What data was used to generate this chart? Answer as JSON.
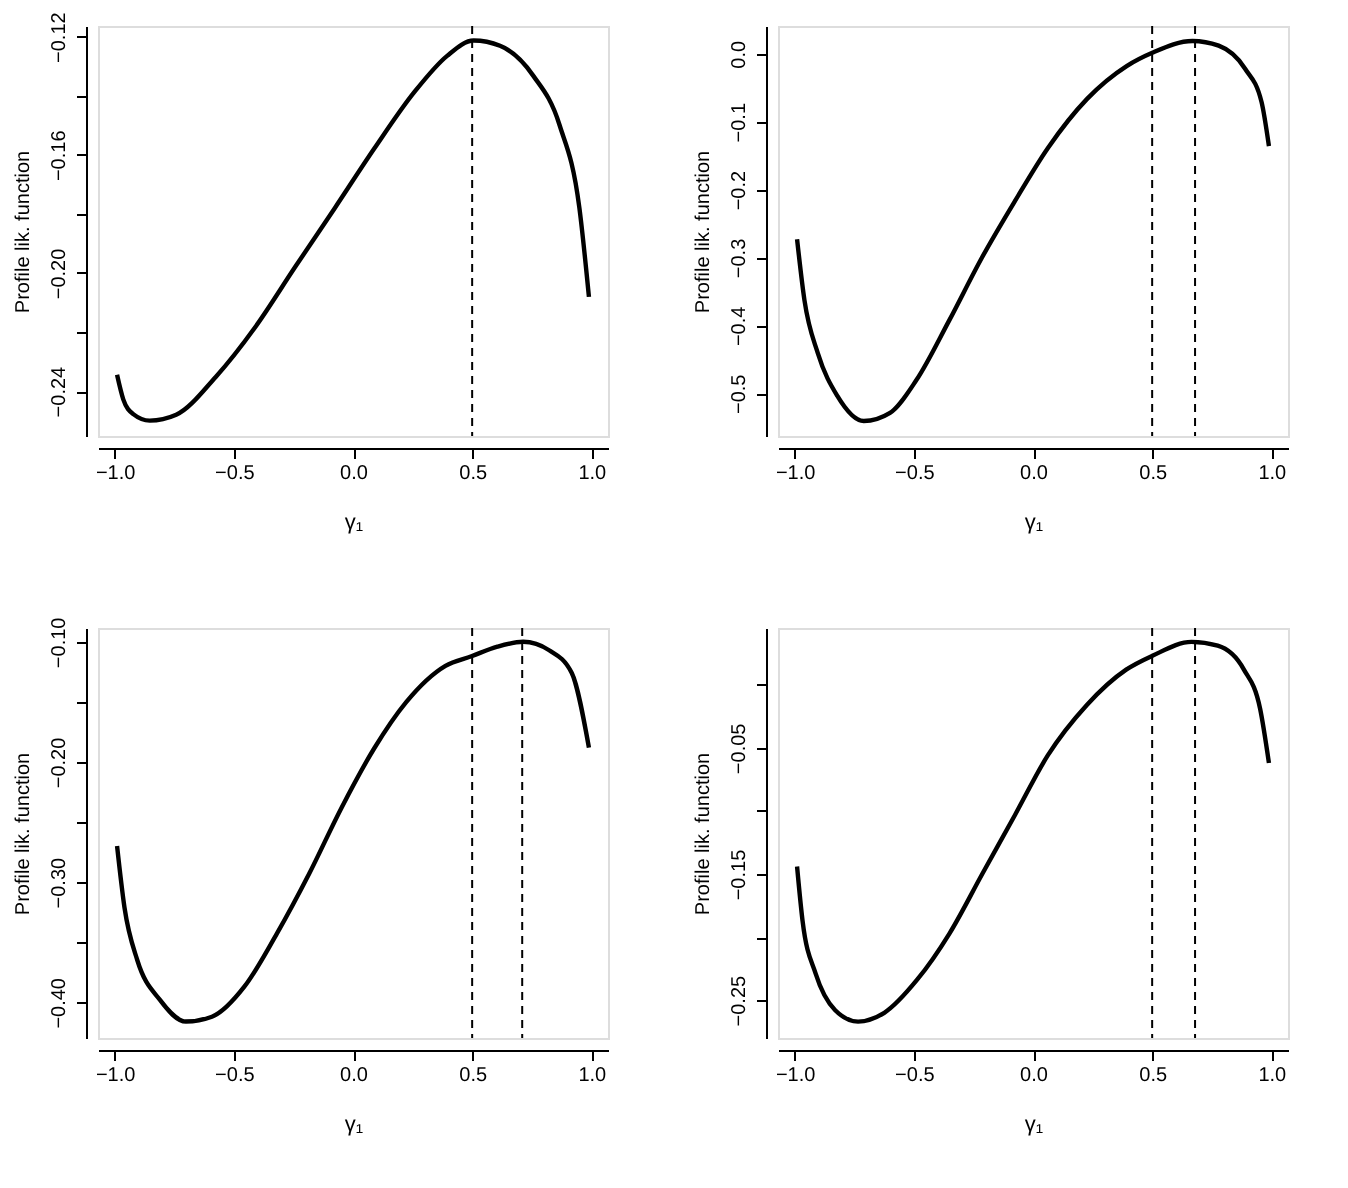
{
  "chart_data": [
    {
      "type": "line",
      "xlabel": "γ₁",
      "ylabel": "Profile lik. function",
      "grid": false,
      "marker": "none",
      "line_style": "solid",
      "xlim": [
        -1.07,
        1.07
      ],
      "ylim": [
        -0.2552,
        -0.1164
      ],
      "xticks": [
        {
          "value": -1.0,
          "label": "−1.0"
        },
        {
          "value": -0.5,
          "label": "−0.5"
        },
        {
          "value": 0.0,
          "label": "0.0"
        },
        {
          "value": 0.5,
          "label": "0.5"
        },
        {
          "value": 1.0,
          "label": "1.0"
        }
      ],
      "yticks": [
        {
          "value": -0.24,
          "label": "−0.24"
        },
        {
          "value": -0.22,
          "label": null
        },
        {
          "value": -0.2,
          "label": "−0.20"
        },
        {
          "value": -0.18,
          "label": null
        },
        {
          "value": -0.16,
          "label": "−0.16"
        },
        {
          "value": -0.14,
          "label": null
        },
        {
          "value": -0.12,
          "label": "−0.12"
        }
      ],
      "ref_lines": [
        {
          "axis": "x",
          "value": 0.5,
          "line_style": "dashed",
          "color": "#000000"
        }
      ],
      "series": [
        {
          "color": "#000000",
          "x": [
            -0.99,
            -0.964,
            -0.922,
            -0.853,
            -0.742,
            -0.576,
            -0.409,
            -0.243,
            -0.076,
            0.09,
            0.257,
            0.395,
            0.506,
            0.617,
            0.756,
            0.867,
            0.95,
            0.99
          ],
          "values": [
            -0.2345,
            -0.2428,
            -0.2478,
            -0.25,
            -0.248,
            -0.2352,
            -0.2182,
            -0.198,
            -0.178,
            -0.1578,
            -0.1388,
            -0.1265,
            -0.1213,
            -0.1231,
            -0.1332,
            -0.15,
            -0.178,
            -0.2081
          ]
        }
      ]
    },
    {
      "type": "line",
      "xlabel": "γ₁",
      "ylabel": "Profile lik. function",
      "grid": false,
      "marker": "none",
      "line_style": "solid",
      "xlim": [
        -1.07,
        1.07
      ],
      "ylim": [
        -0.563,
        0.041
      ],
      "xticks": [
        {
          "value": -1.0,
          "label": "−1.0"
        },
        {
          "value": -0.5,
          "label": "−0.5"
        },
        {
          "value": 0.0,
          "label": "0.0"
        },
        {
          "value": 0.5,
          "label": "0.5"
        },
        {
          "value": 1.0,
          "label": "1.0"
        }
      ],
      "yticks": [
        {
          "value": -0.5,
          "label": "−0.5"
        },
        {
          "value": -0.4,
          "label": "−0.4"
        },
        {
          "value": -0.3,
          "label": "−0.3"
        },
        {
          "value": -0.2,
          "label": "−0.2"
        },
        {
          "value": -0.1,
          "label": "−0.1"
        },
        {
          "value": 0.0,
          "label": "0.0"
        }
      ],
      "ref_lines": [
        {
          "axis": "x",
          "value": 0.5,
          "line_style": "dashed",
          "color": "#000000"
        },
        {
          "axis": "x",
          "value": 0.68,
          "line_style": "dashed",
          "color": "#000000"
        }
      ],
      "series": [
        {
          "color": "#000000",
          "x": [
            -0.99,
            -0.959,
            -0.903,
            -0.821,
            -0.71,
            -0.6,
            -0.49,
            -0.352,
            -0.214,
            -0.076,
            0.062,
            0.228,
            0.393,
            0.503,
            0.669,
            0.779,
            0.89,
            0.959,
            0.99
          ],
          "values": [
            -0.273,
            -0.363,
            -0.441,
            -0.504,
            -0.541,
            -0.529,
            -0.481,
            -0.393,
            -0.3,
            -0.217,
            -0.139,
            -0.066,
            -0.018,
            0.002,
            0.019,
            0.012,
            -0.022,
            -0.071,
            -0.136
          ]
        }
      ]
    },
    {
      "type": "line",
      "xlabel": "γ₁",
      "ylabel": "Profile lik. function",
      "grid": false,
      "marker": "none",
      "line_style": "solid",
      "xlim": [
        -1.07,
        1.07
      ],
      "ylim": [
        -0.4297,
        -0.0885
      ],
      "xticks": [
        {
          "value": -1.0,
          "label": "−1.0"
        },
        {
          "value": -0.5,
          "label": "−0.5"
        },
        {
          "value": 0.0,
          "label": "0.0"
        },
        {
          "value": 0.5,
          "label": "0.5"
        },
        {
          "value": 1.0,
          "label": "1.0"
        }
      ],
      "yticks": [
        {
          "value": -0.4,
          "label": "−0.40"
        },
        {
          "value": -0.35,
          "label": null
        },
        {
          "value": -0.3,
          "label": "−0.30"
        },
        {
          "value": -0.25,
          "label": null
        },
        {
          "value": -0.2,
          "label": "−0.20"
        },
        {
          "value": -0.15,
          "label": null
        },
        {
          "value": -0.1,
          "label": "−0.10"
        }
      ],
      "ref_lines": [
        {
          "axis": "x",
          "value": 0.5,
          "line_style": "dashed",
          "color": "#000000"
        },
        {
          "axis": "x",
          "value": 0.71,
          "line_style": "dashed",
          "color": "#000000"
        }
      ],
      "series": [
        {
          "color": "#000000",
          "x": [
            -0.99,
            -0.959,
            -0.905,
            -0.81,
            -0.701,
            -0.592,
            -0.456,
            -0.32,
            -0.184,
            -0.048,
            0.088,
            0.224,
            0.388,
            0.497,
            0.606,
            0.714,
            0.823,
            0.918,
            0.99
          ],
          "values": [
            -0.27,
            -0.321,
            -0.365,
            -0.398,
            -0.416,
            -0.412,
            -0.387,
            -0.343,
            -0.293,
            -0.238,
            -0.189,
            -0.15,
            -0.12,
            -0.112,
            -0.104,
            -0.1,
            -0.107,
            -0.126,
            -0.188
          ]
        }
      ]
    },
    {
      "type": "line",
      "xlabel": "γ₁",
      "ylabel": "Profile lik. function",
      "grid": false,
      "marker": "none",
      "line_style": "solid",
      "xlim": [
        -1.07,
        1.07
      ],
      "ylim": [
        -0.28,
        0.045
      ],
      "xticks": [
        {
          "value": -1.0,
          "label": "−1.0"
        },
        {
          "value": -0.5,
          "label": "−0.5"
        },
        {
          "value": 0.0,
          "label": "0.0"
        },
        {
          "value": 0.5,
          "label": "0.5"
        },
        {
          "value": 1.0,
          "label": "1.0"
        }
      ],
      "yticks": [
        {
          "value": -0.25,
          "label": "−0.25"
        },
        {
          "value": -0.2,
          "label": null
        },
        {
          "value": -0.15,
          "label": "−0.15"
        },
        {
          "value": -0.1,
          "label": null
        },
        {
          "value": -0.05,
          "label": "−0.05"
        },
        {
          "value": 0.0,
          "label": null
        }
      ],
      "ref_lines": [
        {
          "axis": "x",
          "value": 0.5,
          "line_style": "dashed",
          "color": "#000000"
        },
        {
          "axis": "x",
          "value": 0.68,
          "line_style": "dashed",
          "color": "#000000"
        }
      ],
      "series": [
        {
          "color": "#000000",
          "x": [
            -0.99,
            -0.967,
            -0.912,
            -0.83,
            -0.734,
            -0.624,
            -0.487,
            -0.35,
            -0.213,
            -0.075,
            0.062,
            0.226,
            0.391,
            0.501,
            0.665,
            0.775,
            0.885,
            0.953,
            0.99
          ],
          "values": [
            -0.144,
            -0.187,
            -0.229,
            -0.258,
            -0.267,
            -0.26,
            -0.234,
            -0.197,
            -0.15,
            -0.103,
            -0.056,
            -0.016,
            0.012,
            0.023,
            0.034,
            0.031,
            0.012,
            -0.019,
            -0.062
          ]
        }
      ]
    }
  ]
}
